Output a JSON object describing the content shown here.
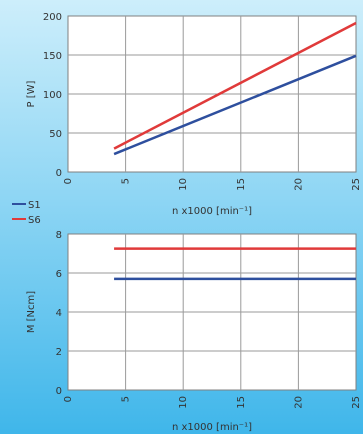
{
  "chart_data": [
    {
      "type": "line",
      "xlabel": "n x1000 [min⁻¹]",
      "ylabel": "P [W]",
      "xlim": [
        0,
        25
      ],
      "ylim": [
        0,
        200
      ],
      "xticks": [
        "0",
        "5",
        "10",
        "15",
        "20",
        "25"
      ],
      "yticks": [
        "0",
        "50",
        "100",
        "150",
        "200"
      ],
      "grid": true,
      "series": [
        {
          "name": "S1",
          "color": "#2e4f9e",
          "x": [
            4,
            25
          ],
          "y": [
            23,
            149
          ]
        },
        {
          "name": "S6",
          "color": "#e03a3a",
          "x": [
            4,
            25
          ],
          "y": [
            30,
            191
          ]
        }
      ]
    },
    {
      "type": "line",
      "xlabel": "n x1000 [min⁻¹]",
      "ylabel": "M [Ncm]",
      "xlim": [
        0,
        25
      ],
      "ylim": [
        0,
        8
      ],
      "xticks": [
        "0",
        "5",
        "10",
        "15",
        "20",
        "25"
      ],
      "yticks": [
        "0",
        "2",
        "4",
        "6",
        "8"
      ],
      "grid": true,
      "series": [
        {
          "name": "S1",
          "color": "#2e4f9e",
          "x": [
            4,
            25
          ],
          "y": [
            5.7,
            5.7
          ]
        },
        {
          "name": "S6",
          "color": "#e03a3a",
          "x": [
            4,
            25
          ],
          "y": [
            7.25,
            7.25
          ]
        }
      ]
    }
  ],
  "legend": {
    "placement": "left",
    "items": [
      {
        "label": "S1",
        "color": "#2e4f9e"
      },
      {
        "label": "S6",
        "color": "#e03a3a"
      }
    ]
  }
}
